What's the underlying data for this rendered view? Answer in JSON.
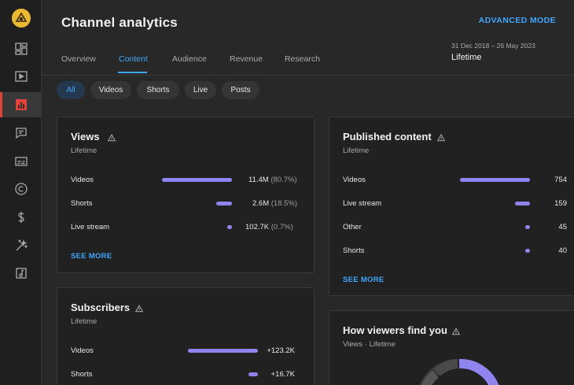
{
  "header": {
    "title": "Channel analytics",
    "advanced_mode": "ADVANCED MODE",
    "date_range": "31 Dec 2018 – 26 May 2023",
    "date_label": "Lifetime"
  },
  "tabs": [
    {
      "label": "Overview"
    },
    {
      "label": "Content"
    },
    {
      "label": "Audience"
    },
    {
      "label": "Revenue"
    },
    {
      "label": "Research"
    }
  ],
  "active_tab": "Content",
  "chips": [
    {
      "label": "All"
    },
    {
      "label": "Videos"
    },
    {
      "label": "Shorts"
    },
    {
      "label": "Live"
    },
    {
      "label": "Posts"
    }
  ],
  "active_chip": "All",
  "sidebar": {
    "items": [
      {
        "icon": "dashboard-icon"
      },
      {
        "icon": "content-icon"
      },
      {
        "icon": "analytics-icon"
      },
      {
        "icon": "comments-icon"
      },
      {
        "icon": "subtitles-icon"
      },
      {
        "icon": "copyright-icon"
      },
      {
        "icon": "earn-icon"
      },
      {
        "icon": "customisation-icon"
      },
      {
        "icon": "audio-library-icon"
      }
    ],
    "active_index": 2
  },
  "colors": {
    "accent": "#3ea6ff",
    "bar": "#8f84f0",
    "active_nav": "#e3423a"
  },
  "views": {
    "title": "Views",
    "subtitle": "Lifetime",
    "rows": [
      {
        "label": "Videos",
        "value": "11.4M",
        "pct": "(80.7%)",
        "share": 0.807
      },
      {
        "label": "Shorts",
        "value": "2.6M",
        "pct": "(18.5%)",
        "share": 0.185
      },
      {
        "label": "Live stream",
        "value": "102.7K",
        "pct": "(0.7%)",
        "share": 0.007
      }
    ],
    "see_more": "SEE MORE"
  },
  "published": {
    "title": "Published content",
    "subtitle": "Lifetime",
    "rows": [
      {
        "label": "Videos",
        "value": "754",
        "count": 754
      },
      {
        "label": "Live stream",
        "value": "159",
        "count": 159
      },
      {
        "label": "Other",
        "value": "45",
        "count": 45
      },
      {
        "label": "Shorts",
        "value": "40",
        "count": 40
      }
    ],
    "see_more": "SEE MORE"
  },
  "subscribers": {
    "title": "Subscribers",
    "subtitle": "Lifetime",
    "rows": [
      {
        "label": "Videos",
        "value": "+123.2K",
        "count": 123.2
      },
      {
        "label": "Shorts",
        "value": "+16.7K",
        "count": 16.7
      }
    ]
  },
  "viewers_find": {
    "title": "How viewers find you",
    "subtitle": "Views · Lifetime"
  }
}
